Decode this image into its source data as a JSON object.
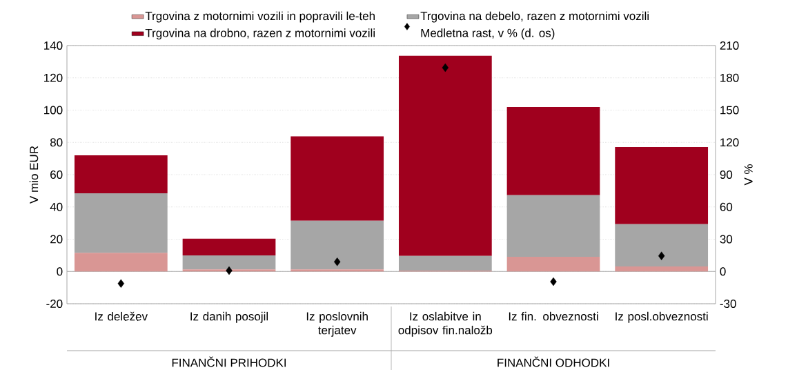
{
  "chart_data": {
    "type": "bar",
    "stacked": true,
    "categories": [
      "Iz deležev",
      "Iz danih posojil",
      "Iz poslovnih terjatev",
      "Iz oslabitve in odpisov fin.naložb",
      "Iz fin. obveznosti",
      "Iz posl.obveznosti"
    ],
    "series": [
      {
        "name": "Trgovina z motornimi vozili in popravili le-teh",
        "color": "#d99694",
        "values": [
          11.6,
          1.3,
          1.3,
          0.5,
          9.1,
          3.1
        ]
      },
      {
        "name": "Trgovina na debelo, razen z motornimi vozili",
        "color": "#a6a6a6",
        "values": [
          36.8,
          8.6,
          30.1,
          9.1,
          38.2,
          26.2
        ]
      },
      {
        "name": "Trgovina na drobno, razen z motornimi vozili",
        "color": "#a0001e",
        "values": [
          23.6,
          10.4,
          52.3,
          124.1,
          54.6,
          47.8
        ]
      },
      {
        "name": "Medletna rast, v % (d. os)",
        "type": "scatter",
        "axis": "y2",
        "marker": "diamond",
        "color": "#000000",
        "values": [
          -11.2,
          0.8,
          9.0,
          189.4,
          -9.5,
          14.5
        ]
      }
    ],
    "ylabel": "V  mio EUR",
    "y2label": "V %",
    "ylim": [
      -20,
      140
    ],
    "yticks": [
      -20,
      0,
      20,
      40,
      60,
      80,
      100,
      120,
      140
    ],
    "y2lim": [
      -30,
      210
    ],
    "y2ticks": [
      -30,
      0,
      30,
      60,
      90,
      120,
      150,
      180,
      210
    ],
    "grid": "y",
    "legend": "top",
    "annotations": [
      "FINANČNI PRIHODKI",
      "FINANČNI ODHODKI"
    ]
  }
}
